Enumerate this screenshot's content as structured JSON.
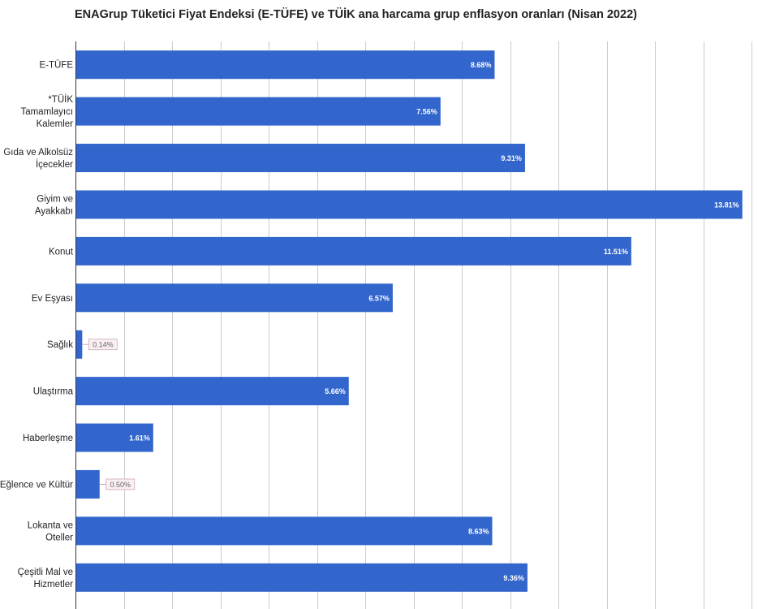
{
  "title": "ENAGrup Tüketici Fiyat Endeksi (E-TÜFE) ve TÜİK ana harcama grup enflasyon oranları (Nisan 2022)",
  "colors": {
    "bar": "#3366cc",
    "grid": "#cccccc",
    "axis": "#333333",
    "outside_label_bg": "#fbeff4",
    "outside_label_border": "#c9a8b6"
  },
  "chart_data": {
    "type": "bar",
    "orientation": "horizontal",
    "title": "ENAGrup Tüketici Fiyat Endeksi (E-TÜFE) ve TÜİK ana harcama grup enflasyon oranları (Nisan 2022)",
    "categories": [
      [
        "E-TÜFE"
      ],
      [
        "*TÜİK",
        "Tamamlayıcı",
        "Kalemler"
      ],
      [
        "Gıda ve Alkolsüz",
        "İçecekler"
      ],
      [
        "Giyim ve",
        "Ayakkabı"
      ],
      [
        "Konut"
      ],
      [
        "Ev Eşyası"
      ],
      [
        "Sağlık"
      ],
      [
        "Ulaştırma"
      ],
      [
        "Haberleşme"
      ],
      [
        "Eğlence ve Kültür"
      ],
      [
        "Lokanta ve",
        "Oteller"
      ],
      [
        "Çeşitli Mal ve",
        "Hizmetler"
      ]
    ],
    "values": [
      8.68,
      7.56,
      9.31,
      13.81,
      11.51,
      6.57,
      0.14,
      5.66,
      1.61,
      0.5,
      8.63,
      9.36
    ],
    "value_labels": [
      "8.68%",
      "7.56%",
      "9.31%",
      "13.81%",
      "11.51%",
      "6.57%",
      "0.14%",
      "5.66%",
      "1.61%",
      "0.50%",
      "8.63%",
      "9.36%"
    ],
    "xlim": [
      0,
      14
    ],
    "grid": true
  }
}
